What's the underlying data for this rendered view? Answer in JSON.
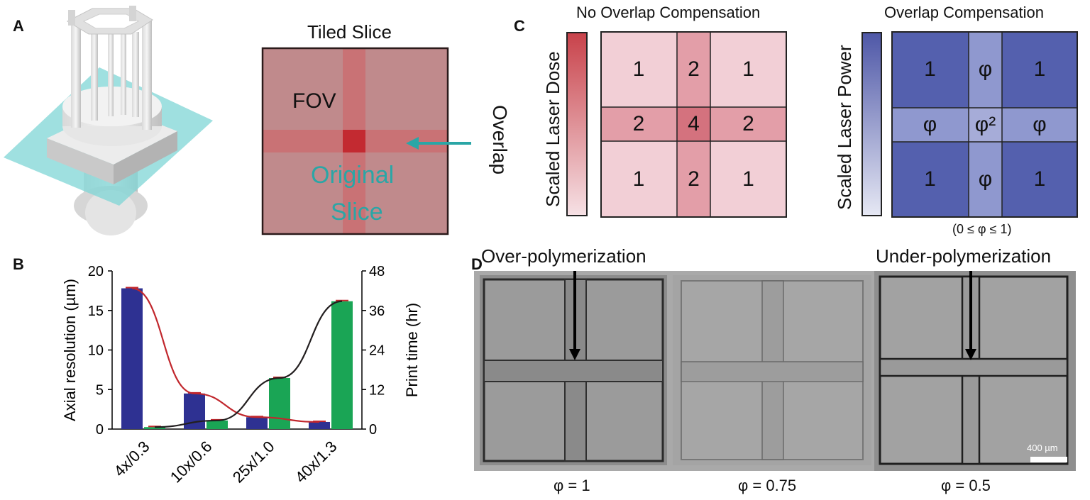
{
  "panels": {
    "a": "A",
    "b": "B",
    "c": "C",
    "d": "D"
  },
  "panel_a": {
    "tiled_title": "Tiled Slice",
    "fov_label": "FOV",
    "original_line1": "Original",
    "original_line2": "Slice",
    "overlap_label": "Overlap"
  },
  "panel_c": {
    "left_title": "No Overlap Compensation",
    "right_title": "Overlap Compensation",
    "dose_label": "Scaled Laser Dose",
    "power_label": "Scaled Laser Power",
    "left_grid": [
      "1",
      "2",
      "1",
      "2",
      "4",
      "2",
      "1",
      "2",
      "1"
    ],
    "right_grid": [
      "1",
      "φ",
      "1",
      "φ",
      "φ²",
      "φ",
      "1",
      "φ",
      "1"
    ],
    "phi_range": "(0 ≤ φ ≤ 1)"
  },
  "panel_d": {
    "over_label": "Over-polymerization",
    "under_label": "Under-polymerization",
    "scale_bar": "400 µm",
    "phi_labels": [
      "φ = 1",
      "φ = 0.75",
      "φ = 0.5"
    ]
  },
  "colors": {
    "dose_dark": "#c8424a",
    "dose_light": "#f2d3d8",
    "power_dark": "#4e57a7",
    "power_light": "#dcdff0",
    "bar_blue": "#2e3192",
    "bar_green": "#1aa555",
    "line_red": "#c1272d",
    "line_black": "#231f20",
    "overlap_arrow": "#2aa6a6"
  },
  "chart_data": {
    "type": "bar",
    "categories": [
      "4x/0.3",
      "10x/0.6",
      "25x/1.0",
      "40x/1.3"
    ],
    "ylabel": "Axial resolution (µm)",
    "y2label": "Print time (hr)",
    "ylim": [
      0,
      20
    ],
    "y2lim": [
      0,
      48
    ],
    "yticks": [
      "0",
      "5",
      "10",
      "15",
      "20"
    ],
    "y2ticks": [
      "0",
      "12",
      "24",
      "36",
      "48"
    ],
    "series": [
      {
        "axis": "left",
        "kind": "bar",
        "color": "#2e3192",
        "values": [
          17.8,
          4.5,
          1.5,
          0.9
        ]
      },
      {
        "axis": "right",
        "kind": "bar",
        "color": "#1aa555",
        "values": [
          0.6,
          2.6,
          15.5,
          38.8
        ]
      },
      {
        "axis": "left",
        "kind": "line",
        "color": "#c1272d",
        "values": [
          17.8,
          4.5,
          1.5,
          0.9
        ]
      },
      {
        "axis": "right",
        "kind": "line",
        "color": "#231f20",
        "values": [
          0.6,
          2.6,
          15.5,
          38.8
        ]
      }
    ]
  }
}
